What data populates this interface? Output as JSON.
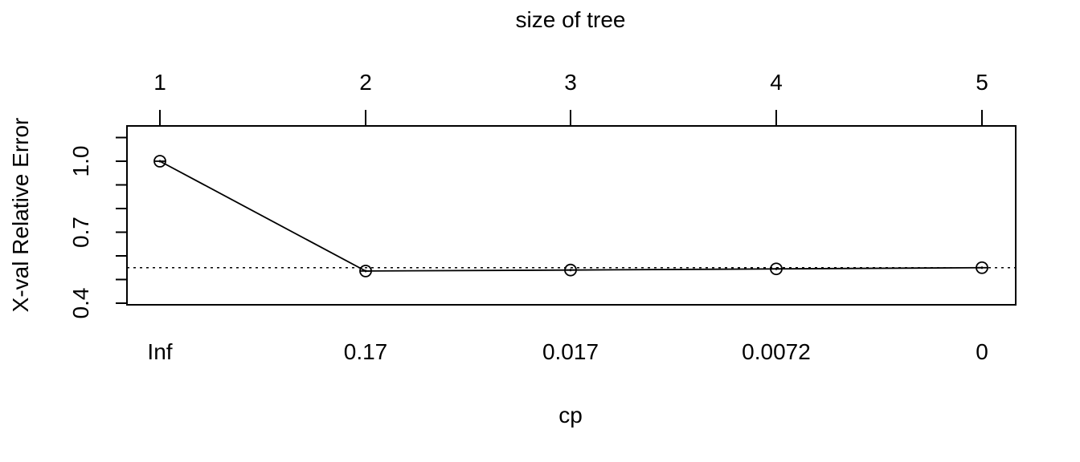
{
  "chart_data": {
    "type": "line",
    "title": "",
    "xlabel": "cp",
    "ylabel": "X-val Relative Error",
    "top_axis_label": "size of tree",
    "x_tick_labels": [
      "Inf",
      "0.17",
      "0.017",
      "0.0072",
      "0"
    ],
    "top_tick_labels": [
      "1",
      "2",
      "3",
      "4",
      "5"
    ],
    "y_tick_labels": [
      "0.4",
      "0.7",
      "1.0"
    ],
    "y_ticks": [
      0.4,
      0.5,
      0.6,
      0.7,
      0.8,
      0.9,
      1.0,
      1.1
    ],
    "y_labeled_ticks": [
      0.4,
      0.7,
      1.0
    ],
    "ylim": [
      0.39,
      1.1
    ],
    "size": [
      1,
      2,
      3,
      4,
      5
    ],
    "values": [
      1.0,
      0.536,
      0.54,
      0.545,
      0.55
    ],
    "error_bar": [
      0.005,
      0.005,
      0.005,
      0.005,
      0.005
    ],
    "reference_line": 0.55,
    "reference_style": "dotted",
    "grid": false,
    "legend": "none"
  }
}
